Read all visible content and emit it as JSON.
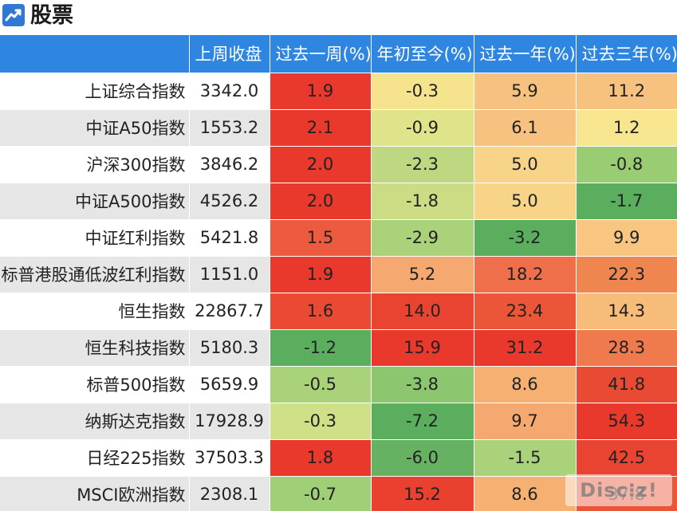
{
  "header": {
    "title": "股票",
    "icon": "trend-chart-icon",
    "icon_color": "#2f78d4"
  },
  "table": {
    "header_color": "#2e86e0",
    "columns": [
      "",
      "上周收盘",
      "过去一周(%)",
      "年初至今(%)",
      "过去一年(%)",
      "过去三年(%)"
    ],
    "rows": [
      {
        "name": "上证综合指数",
        "close": "3342.0",
        "values": [
          "1.9",
          "-0.3",
          "5.9",
          "11.2"
        ],
        "colors": [
          "#e8392c",
          "#f5e38e",
          "#f7c27f",
          "#f7c27f"
        ]
      },
      {
        "name": "中证A50指数",
        "close": "1553.2",
        "values": [
          "2.1",
          "-0.9",
          "6.1",
          "1.2"
        ],
        "colors": [
          "#e8392c",
          "#dfe38a",
          "#f7c27f",
          "#f8e590"
        ]
      },
      {
        "name": "沪深300指数",
        "close": "3846.2",
        "values": [
          "2.0",
          "-2.3",
          "5.0",
          "-0.8"
        ],
        "colors": [
          "#e8392c",
          "#bdd880",
          "#f8d488",
          "#9acd73"
        ]
      },
      {
        "name": "中证A500指数",
        "close": "4526.2",
        "values": [
          "2.0",
          "-1.8",
          "5.0",
          "-1.7"
        ],
        "colors": [
          "#e8392c",
          "#ccdc85",
          "#f8d488",
          "#5aae5e"
        ]
      },
      {
        "name": "中证红利指数",
        "close": "5421.8",
        "values": [
          "1.5",
          "-2.9",
          "-3.2",
          "9.9"
        ],
        "colors": [
          "#ec5b3e",
          "#a9d27b",
          "#5aae5e",
          "#f8c681"
        ]
      },
      {
        "name": "标普港股通低波红利指数",
        "close": "1151.0",
        "values": [
          "1.9",
          "5.2",
          "18.2",
          "22.3"
        ],
        "colors": [
          "#e8392c",
          "#f5a870",
          "#ee6f49",
          "#f0864f"
        ]
      },
      {
        "name": "恒生指数",
        "close": "22867.7",
        "values": [
          "1.6",
          "14.0",
          "23.4",
          "14.3"
        ],
        "colors": [
          "#ea4a34",
          "#e94431",
          "#eb5639",
          "#f7bb7a"
        ]
      },
      {
        "name": "恒生科技指数",
        "close": "5180.3",
        "values": [
          "-1.2",
          "15.9",
          "31.2",
          "28.3"
        ],
        "colors": [
          "#5aae5e",
          "#e8392c",
          "#e8392c",
          "#ef7a4d"
        ]
      },
      {
        "name": "标普500指数",
        "close": "5659.9",
        "values": [
          "-0.5",
          "-3.8",
          "8.6",
          "41.8"
        ],
        "colors": [
          "#a9d27b",
          "#8cc66f",
          "#f6b072",
          "#e94a34"
        ]
      },
      {
        "name": "纳斯达克指数",
        "close": "17928.9",
        "values": [
          "-0.3",
          "-7.2",
          "9.7",
          "54.3"
        ],
        "colors": [
          "#cfe089",
          "#5aae5e",
          "#f5a870",
          "#e8392c"
        ]
      },
      {
        "name": "日经225指数",
        "close": "37503.3",
        "values": [
          "1.8",
          "-6.0",
          "-1.5",
          "42.5"
        ],
        "colors": [
          "#e8392c",
          "#66b262",
          "#a9d27b",
          "#e94431"
        ]
      },
      {
        "name": "MSCI欧洲指数",
        "close": "2308.1",
        "values": [
          "-0.7",
          "15.2",
          "8.6",
          "37.8"
        ],
        "colors": [
          "#9fcf77",
          "#e9402f",
          "#f6b072",
          "#eb5639"
        ]
      }
    ]
  },
  "watermark": "Disc⁝z!"
}
